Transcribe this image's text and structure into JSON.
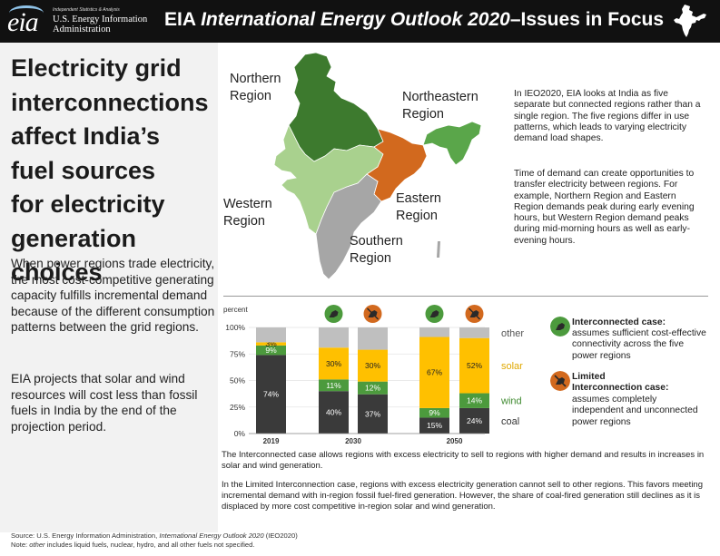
{
  "header": {
    "logo_text": "eia",
    "logo_tagline": "Independent Statistics & Analysis",
    "logo_name_line1": "U.S. Energy Information",
    "logo_name_line2": "Administration",
    "title_prefix": "EIA ",
    "title_italic": "International Energy Outlook 2020",
    "title_suffix": "–Issues in Focus"
  },
  "left_panel": {
    "headline_lines": [
      "Electricity grid",
      "interconnections",
      "affect India’s",
      "fuel sources",
      "for electricity",
      "generation choices"
    ],
    "para1": "When power regions trade electricity, the most cost-competitive generating capacity fulfills incremental demand because of the different consumption patterns between the grid regions.",
    "para2": "EIA projects that solar and wind resources will cost less than fossil fuels in India by the end of the projection period."
  },
  "map": {
    "regions": [
      {
        "line1": "Northern",
        "line2": "Region",
        "color": "#3d7a2e"
      },
      {
        "line1": "Northeastern",
        "line2": "Region",
        "color": "#5aa64a"
      },
      {
        "line1": "Eastern",
        "line2": "Region",
        "color": "#d2691e"
      },
      {
        "line1": "Western",
        "line2": "Region",
        "color": "#a9d18e"
      },
      {
        "line1": "Southern",
        "line2": "Region",
        "color": "#a6a6a6"
      }
    ]
  },
  "description": {
    "p1": "In IEO2020, EIA looks at India as five separate but connected regions rather than a single region. The five regions differ in use patterns, which leads to varying electricity demand load shapes.",
    "p2": "Time of demand can create opportunities to transfer electricity between regions. For example, Northern Region and Eastern Region demands peak during early evening hours, but Western Region demand peaks during mid-morning hours as well as early-evening hours."
  },
  "chart_data": {
    "type": "bar",
    "stacked": true,
    "percent_stacked": true,
    "ylabel": "percent",
    "y_ticks": [
      "0%",
      "25%",
      "50%",
      "75%",
      "100%"
    ],
    "ylim": [
      0,
      100
    ],
    "categories": [
      "2019",
      "2030",
      "2030",
      "2050",
      "2050"
    ],
    "x_labels": [
      "2019",
      "2030",
      "2050"
    ],
    "case_icons": [
      "",
      "interconnected",
      "limited",
      "interconnected",
      "limited"
    ],
    "series": [
      {
        "name": "coal",
        "color": "#3a3a3a",
        "values": [
          74,
          40,
          37,
          15,
          24
        ],
        "labels": [
          "74%",
          "40%",
          "37%",
          "15%",
          "24%"
        ]
      },
      {
        "name": "wind",
        "color": "#4c9a3d",
        "values": [
          9,
          11,
          12,
          9,
          14
        ],
        "labels": [
          "9%",
          "11%",
          "12%",
          "9%",
          "14%"
        ]
      },
      {
        "name": "solar",
        "color": "#ffc000",
        "values": [
          3,
          30,
          30,
          67,
          52
        ],
        "labels": [
          "3%",
          "30%",
          "30%",
          "67%",
          "52%"
        ]
      },
      {
        "name": "other",
        "color": "#bfbfbf",
        "values": [
          14,
          19,
          21,
          9,
          10
        ],
        "labels": [
          "",
          "",
          "",
          "",
          ""
        ]
      }
    ],
    "series_labels": {
      "other": "other",
      "solar": "solar",
      "wind": "wind",
      "coal": "coal"
    },
    "series_label_colors": {
      "other": "#555555",
      "solar": "#e0a800",
      "wind": "#3f8a30",
      "coal": "#333333"
    }
  },
  "legend": {
    "interconnected_color": "#4c9a3d",
    "limited_color": "#d2691e",
    "interconnected_title": "Interconnected case:",
    "interconnected_text": "assumes sufficient cost-effective connectivity across the five power regions",
    "limited_title_line1": "Limited",
    "limited_title_line2": "Interconnection case:",
    "limited_text": "assumes completely independent and unconnected power regions"
  },
  "captions": {
    "c1": "The Interconnected case allows regions with excess electricity to sell to regions with higher demand and results in increases in solar and wind generation.",
    "c2": "In the Limited Interconnection case, regions with excess electricity generation cannot sell to other regions. This favors meeting incremental demand with in-region fossil fuel-fired generation. However, the share of coal-fired generation still declines as it is displaced by more cost competitive in-region solar and wind generation."
  },
  "source": {
    "line1_prefix": "Source: U.S. Energy Information Administration, ",
    "line1_italic": "International Energy Outlook 2020",
    "line1_suffix": " (IEO2020)",
    "line2_prefix": "Note: ",
    "line2_italic": "other",
    "line2_suffix": " includes liquid fuels, nuclear, hydro, and all other fuels not specified."
  }
}
